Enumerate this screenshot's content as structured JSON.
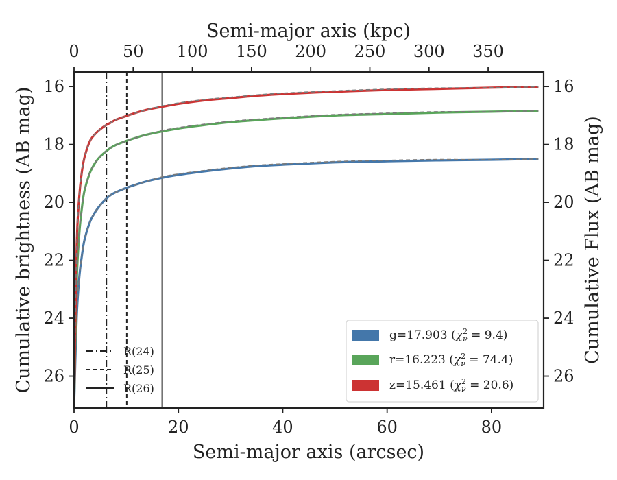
{
  "chart_data": {
    "type": "line",
    "xlabel": "Semi-major axis (arcsec)",
    "x2label": "Semi-major axis (kpc)",
    "ylabel": "Cumulative brightness (AB mag)",
    "y2label": "Cumulative Flux (AB mag)",
    "xlim": [
      0,
      90
    ],
    "ylim": [
      27.1,
      15.5
    ],
    "x_ticks": [
      0,
      20,
      40,
      60,
      80
    ],
    "y_ticks": [
      16,
      18,
      20,
      22,
      24,
      26
    ],
    "x2_ticks": [
      0,
      50,
      100,
      150,
      200,
      250,
      300,
      350
    ],
    "kpc_per_arcsec": 4.41,
    "y_inverted": true,
    "reference_lines": [
      {
        "label": "R(24)",
        "x": 6.2,
        "style": "dashdot"
      },
      {
        "label": "R(25)",
        "x": 10.1,
        "style": "dashed"
      },
      {
        "label": "R(26)",
        "x": 16.9,
        "style": "solid"
      }
    ],
    "series": [
      {
        "name": "g",
        "legend": "g=17.903",
        "chi2": "9.4",
        "color": "#4477aa",
        "x": [
          0,
          0.5,
          1,
          1.5,
          2,
          3,
          4,
          5,
          6,
          7,
          8,
          10,
          12,
          14,
          16.9,
          20,
          25,
          30,
          35,
          40,
          50,
          60,
          70,
          80,
          89
        ],
        "y": [
          27.1,
          24.0,
          22.6,
          21.85,
          21.3,
          20.7,
          20.35,
          20.1,
          19.9,
          19.75,
          19.65,
          19.5,
          19.38,
          19.27,
          19.15,
          19.05,
          18.93,
          18.83,
          18.75,
          18.7,
          18.62,
          18.58,
          18.55,
          18.53,
          18.5
        ]
      },
      {
        "name": "r",
        "legend": "r=16.223",
        "chi2": "74.4",
        "color": "#59a55a",
        "x": [
          0,
          0.5,
          1,
          1.5,
          2,
          3,
          4,
          5,
          6,
          7,
          8,
          10,
          12,
          14,
          16.9,
          20,
          25,
          30,
          35,
          40,
          50,
          60,
          70,
          80,
          89
        ],
        "y": [
          27.1,
          22.8,
          21.1,
          20.2,
          19.6,
          19.0,
          18.65,
          18.42,
          18.26,
          18.12,
          18.02,
          17.88,
          17.76,
          17.66,
          17.55,
          17.45,
          17.33,
          17.23,
          17.16,
          17.1,
          17.0,
          16.95,
          16.9,
          16.87,
          16.84
        ]
      },
      {
        "name": "z",
        "legend": "z=15.461",
        "chi2": "20.6",
        "color": "#cc3333",
        "x": [
          0,
          0.5,
          1,
          1.5,
          2,
          3,
          4,
          5,
          6,
          7,
          8,
          10,
          12,
          14,
          16.9,
          20,
          25,
          30,
          35,
          40,
          50,
          60,
          70,
          80,
          89
        ],
        "y": [
          27.1,
          21.6,
          19.8,
          18.95,
          18.45,
          17.9,
          17.65,
          17.48,
          17.35,
          17.25,
          17.15,
          17.02,
          16.9,
          16.8,
          16.7,
          16.6,
          16.48,
          16.4,
          16.32,
          16.26,
          16.18,
          16.12,
          16.08,
          16.04,
          16.01
        ]
      }
    ]
  }
}
